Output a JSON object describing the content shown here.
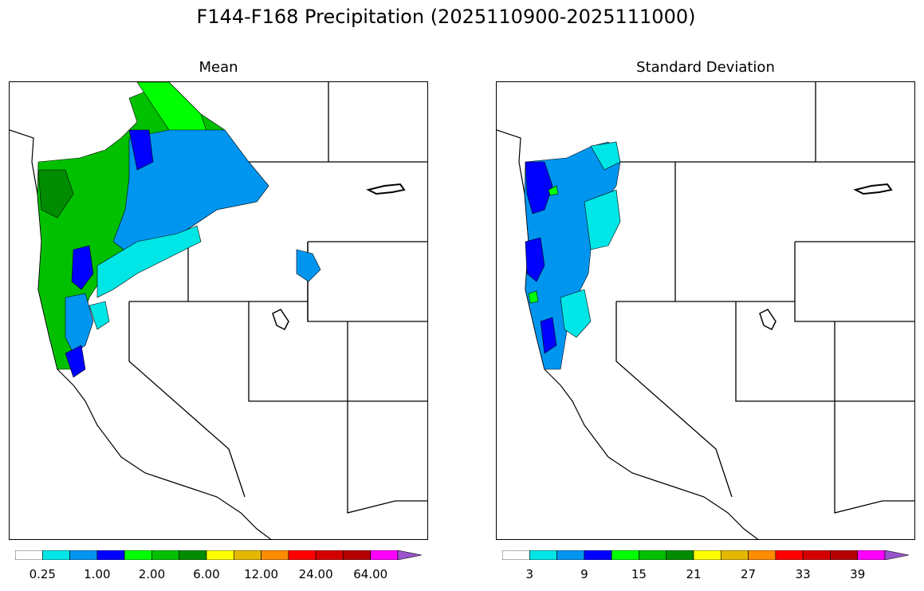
{
  "title": "F144-F168 Precipitation (2025110900-2025111000)",
  "panels": [
    {
      "title": "Mean",
      "colorbar": {
        "colors": [
          "#ffffff",
          "#00e5e5",
          "#0096f0",
          "#0000ff",
          "#00ff00",
          "#00c000",
          "#008c00",
          "#ffff00",
          "#e5b800",
          "#ff8c00",
          "#ff0000",
          "#d40000",
          "#b40000",
          "#ff00ff",
          "#9955cc"
        ],
        "labels": [
          "0.25",
          "1.00",
          "2.00",
          "6.00",
          "12.00",
          "24.00",
          "64.00"
        ]
      }
    },
    {
      "title": "Standard Deviation",
      "colorbar": {
        "colors": [
          "#ffffff",
          "#00e5e5",
          "#0096f0",
          "#0000ff",
          "#00ff00",
          "#00c000",
          "#008c00",
          "#ffff00",
          "#e5b800",
          "#ff8c00",
          "#ff0000",
          "#d40000",
          "#b40000",
          "#ff00ff",
          "#9955cc"
        ],
        "labels": [
          "3",
          "9",
          "15",
          "21",
          "27",
          "33",
          "39"
        ]
      }
    }
  ]
}
